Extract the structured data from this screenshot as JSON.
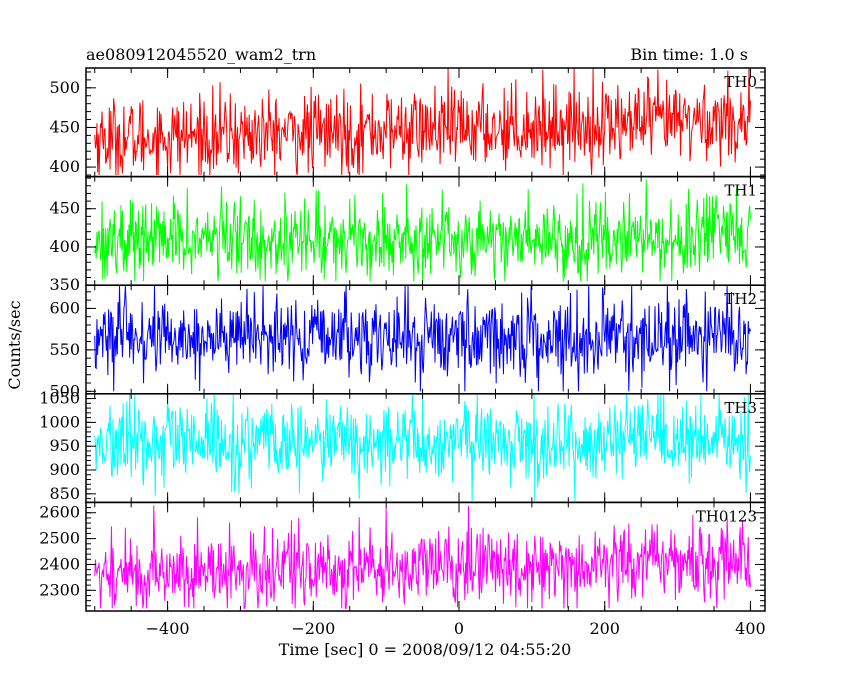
{
  "header": {
    "title": "ae080912045520_wam2_trn",
    "bin_time": "Bin time: 1.0 s"
  },
  "chart_data": {
    "type": "line",
    "title": "ae080912045520_wam2_trn",
    "subtitle": "Bin time: 1.0 s",
    "xlabel": "Time [sec] 0 = 2008/09/12 04:55:20",
    "ylabel": "Counts/sec",
    "xlim": [
      -512,
      420
    ],
    "x_ticks": [
      -400,
      -200,
      0,
      200,
      400
    ],
    "x_tick_labels": [
      "−400",
      "−200",
      "0",
      "200",
      "400"
    ],
    "x_range": [
      -500,
      400
    ],
    "bin_time": 1.0,
    "grid": false,
    "panels": [
      {
        "name": "TH0",
        "color": "#ff0000",
        "ylim": [
          388,
          525
        ],
        "y_ticks": [
          400,
          450,
          500
        ],
        "y_tick_labels": [
          "400",
          "450",
          "500"
        ],
        "mean_start": 435,
        "mean_end": 460,
        "approx_min": 390,
        "approx_max": 525
      },
      {
        "name": "TH1",
        "color": "#00ff00",
        "ylim": [
          350,
          492
        ],
        "y_ticks": [
          350,
          400,
          450
        ],
        "y_tick_labels": [
          "350",
          "400",
          "450"
        ],
        "mean_start": 410,
        "mean_end": 412,
        "approx_min": 355,
        "approx_max": 490
      },
      {
        "name": "TH2",
        "color": "#0000ff",
        "ylim": [
          497,
          628
        ],
        "y_ticks": [
          500,
          550,
          600
        ],
        "y_tick_labels": [
          "500",
          "550",
          "600"
        ],
        "mean_start": 565,
        "mean_end": 565,
        "approx_min": 500,
        "approx_max": 628
      },
      {
        "name": "TH3",
        "color": "#00ffff",
        "ylim": [
          832,
          1060
        ],
        "y_ticks": [
          850,
          900,
          950,
          1000,
          1050
        ],
        "y_tick_labels": [
          "850",
          "900",
          "950",
          "1000",
          "1050"
        ],
        "mean_start": 955,
        "mean_end": 960,
        "approx_min": 835,
        "approx_max": 1060
      },
      {
        "name": "TH0123",
        "color": "#ff00ff",
        "ylim": [
          2220,
          2640
        ],
        "y_ticks": [
          2300,
          2400,
          2500,
          2600
        ],
        "y_tick_labels": [
          "2300",
          "2400",
          "2500",
          "2600"
        ],
        "mean_start": 2360,
        "mean_end": 2420,
        "approx_min": 2230,
        "approx_max": 2630
      }
    ]
  }
}
